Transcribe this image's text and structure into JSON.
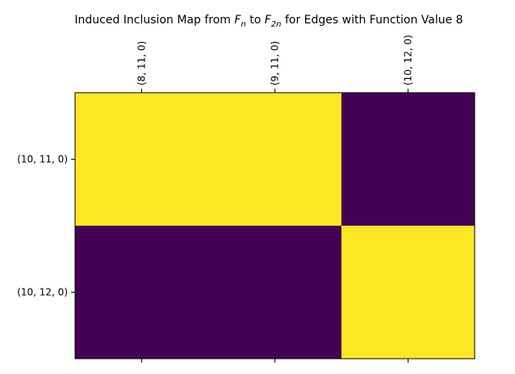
{
  "chart_data": {
    "type": "heatmap",
    "title": {
      "prefix": "Induced Inclusion Map from ",
      "sym1": "F",
      "sub1": "n",
      "middle": " to ",
      "sym2": "F",
      "sub2": "2n",
      "suffix": " for Edges with Function Value 8"
    },
    "x_categories": [
      "(8, 11, 0)",
      "(9, 11, 0)",
      "(10, 12, 0)"
    ],
    "y_categories": [
      "(10, 11, 0)",
      "(10, 12, 0)"
    ],
    "matrix": [
      [
        1,
        1,
        0
      ],
      [
        0,
        0,
        1
      ]
    ],
    "xaxis_position": "top",
    "grid": false,
    "colors": {
      "high": "#fde725",
      "low": "#440154",
      "axis": "#000000"
    }
  }
}
